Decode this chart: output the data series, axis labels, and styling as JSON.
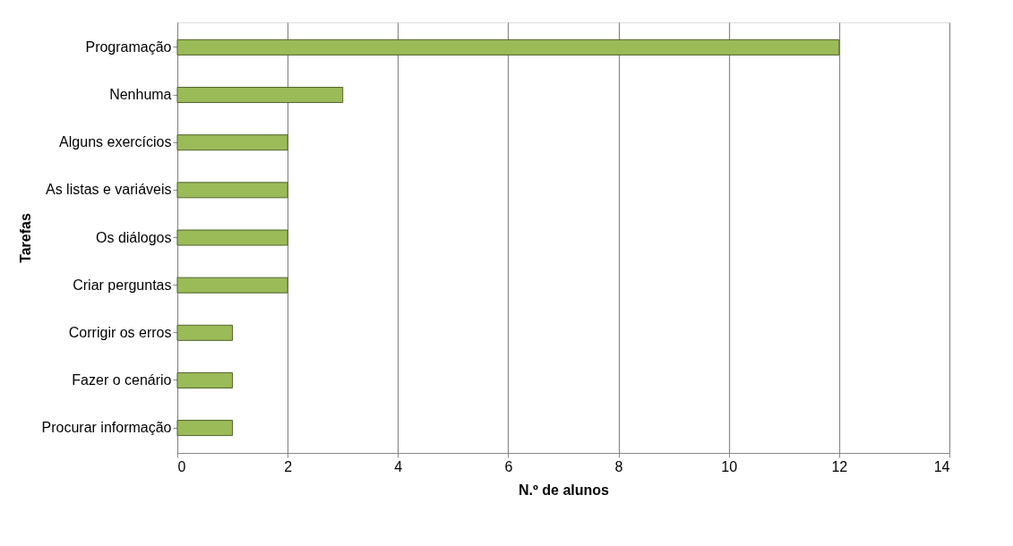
{
  "chart_data": {
    "type": "bar",
    "orientation": "horizontal",
    "xlabel": "N.º de alunos",
    "ylabel": "Tarefas",
    "categories": [
      "Programação",
      "Nenhuma",
      "Alguns exercícios",
      "As listas e variáveis",
      "Os diálogos",
      "Criar perguntas",
      "Corrigir os erros",
      "Fazer o cenário",
      "Procurar informação"
    ],
    "values": [
      12,
      3,
      2,
      2,
      2,
      2,
      1,
      1,
      1
    ],
    "color": "#9bbb59",
    "xlim": [
      0,
      14
    ],
    "xticks": [
      0,
      2,
      4,
      6,
      8,
      10,
      12,
      14
    ],
    "grid": "x"
  }
}
